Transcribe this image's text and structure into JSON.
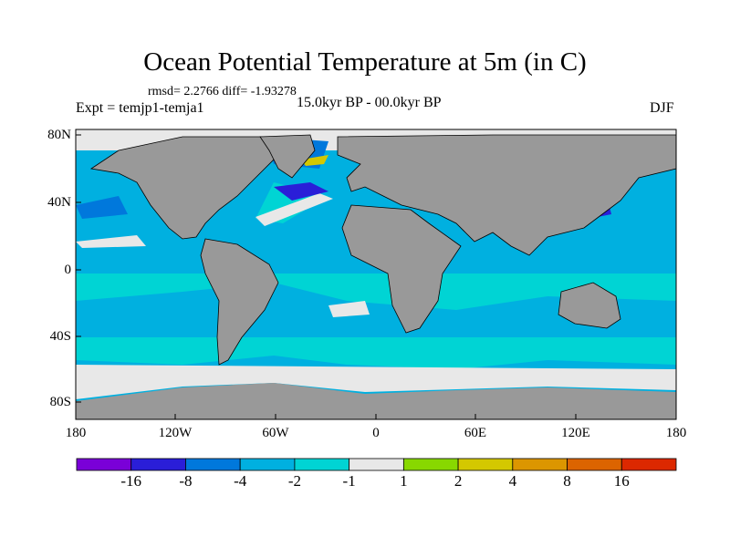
{
  "title": "Ocean Potential Temperature at 5m (in C)",
  "stats": "rmsd= 2.2766 diff= -1.93278",
  "experiment": "Expt = temjp1-temja1",
  "period": "15.0kyr BP - 00.0kyr BP",
  "season": "DJF",
  "y_ticks": [
    "80N",
    "40N",
    "0",
    "40S",
    "80S"
  ],
  "x_ticks": [
    "180",
    "120W",
    "60W",
    "0",
    "60E",
    "120E",
    "180"
  ],
  "colorbar": {
    "labels": [
      "-16",
      "-8",
      "-4",
      "-2",
      "-1",
      "1",
      "2",
      "4",
      "8",
      "16"
    ],
    "colors": [
      "#7a00d8",
      "#2a1ed8",
      "#0078dc",
      "#00b0e0",
      "#00d4d4",
      "#e8e8e8",
      "#88d800",
      "#d4c800",
      "#dc9600",
      "#dc6400",
      "#dc2800"
    ]
  },
  "colors": {
    "land": "#999999",
    "ocean": "#00b0e0",
    "ocean_light": "#00d4d4",
    "near_zero": "#e8e8e8",
    "cold": "#0078dc"
  }
}
